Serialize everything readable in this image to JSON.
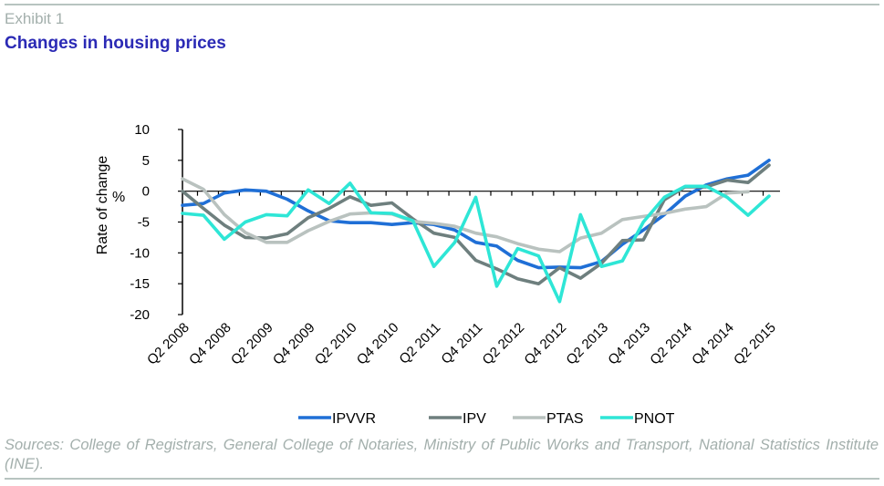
{
  "header": {
    "exhibit": "Exhibit 1",
    "title": "Changes in housing prices"
  },
  "footer": {
    "sources": "Sources: College of Registrars, General College of Notaries, Ministry of Public Works and Transport, National Statistics Institute (INE)."
  },
  "chart_data": {
    "type": "line",
    "title": "Changes in housing prices",
    "xlabel": "",
    "ylabel": "Rate of change",
    "ylabel_unit": "%",
    "ylim": [
      -20,
      10
    ],
    "yticks": [
      10,
      5,
      0,
      -5,
      -10,
      -15,
      -20
    ],
    "grid": false,
    "legend_position": "bottom",
    "x": [
      "Q2 2008",
      "Q3 2008",
      "Q4 2008",
      "Q1 2009",
      "Q2 2009",
      "Q3 2009",
      "Q4 2009",
      "Q1 2010",
      "Q2 2010",
      "Q3 2010",
      "Q4 2010",
      "Q1 2011",
      "Q2 2011",
      "Q3 2011",
      "Q4 2011",
      "Q1 2012",
      "Q2 2012",
      "Q3 2012",
      "Q4 2012",
      "Q1 2013",
      "Q2 2013",
      "Q3 2013",
      "Q4 2013",
      "Q1 2014",
      "Q2 2014",
      "Q3 2014",
      "Q4 2014",
      "Q1 2015",
      "Q2 2015"
    ],
    "xtick_labels": [
      "Q2 2008",
      "Q4 2008",
      "Q2 2009",
      "Q4 2009",
      "Q2 2010",
      "Q4 2010",
      "Q2 2011",
      "Q4 2011",
      "Q2 2012",
      "Q4 2012",
      "Q2 2013",
      "Q4 2013",
      "Q2 2014",
      "Q4 2014",
      "Q2 2015"
    ],
    "series": [
      {
        "name": "IPVVR",
        "color": "#1f6fd6",
        "values": [
          -2.3,
          -2.0,
          -0.3,
          0.2,
          0.0,
          -1.3,
          -3.2,
          -4.8,
          -5.1,
          -5.1,
          -5.4,
          -5.1,
          -5.4,
          -6.3,
          -8.3,
          -8.9,
          -11.2,
          -12.4,
          -12.3,
          -12.4,
          -11.4,
          -8.6,
          -6.3,
          -3.8,
          -0.8,
          1.0,
          2.0,
          2.6,
          5.0
        ]
      },
      {
        "name": "IPV",
        "color": "#6e7f7e",
        "values": [
          0.0,
          -2.8,
          -5.5,
          -7.5,
          -7.6,
          -6.9,
          -4.3,
          -2.8,
          -0.9,
          -2.3,
          -1.9,
          -4.5,
          -6.8,
          -7.5,
          -11.2,
          -12.6,
          -14.2,
          -15.0,
          -12.4,
          -14.1,
          -11.7,
          -8.0,
          -7.9,
          -1.4,
          0.7,
          0.7,
          1.8,
          1.4,
          4.2
        ]
      },
      {
        "name": "PTAS",
        "color": "#b9c2bf",
        "values": [
          2.0,
          0.3,
          -3.8,
          -6.7,
          -8.3,
          -8.3,
          -6.4,
          -4.9,
          -3.7,
          -3.5,
          -3.7,
          -4.9,
          -5.2,
          -5.7,
          -6.8,
          -7.4,
          -8.5,
          -9.4,
          -9.8,
          -7.6,
          -6.8,
          -4.6,
          -4.1,
          -3.6,
          -2.9,
          -2.5,
          -0.3,
          -0.1,
          null
        ]
      },
      {
        "name": "PNOT",
        "color": "#2ee6d6",
        "values": [
          -3.6,
          -3.9,
          -7.8,
          -5.0,
          -3.8,
          -4.0,
          0.2,
          -2.0,
          1.3,
          -3.5,
          -3.6,
          -4.8,
          -12.2,
          -8.3,
          -1.0,
          -15.4,
          -9.3,
          -10.5,
          -17.9,
          -3.8,
          -12.2,
          -11.3,
          -5.0,
          -1.0,
          0.8,
          0.8,
          -1.0,
          -3.9,
          -0.8
        ]
      }
    ]
  }
}
